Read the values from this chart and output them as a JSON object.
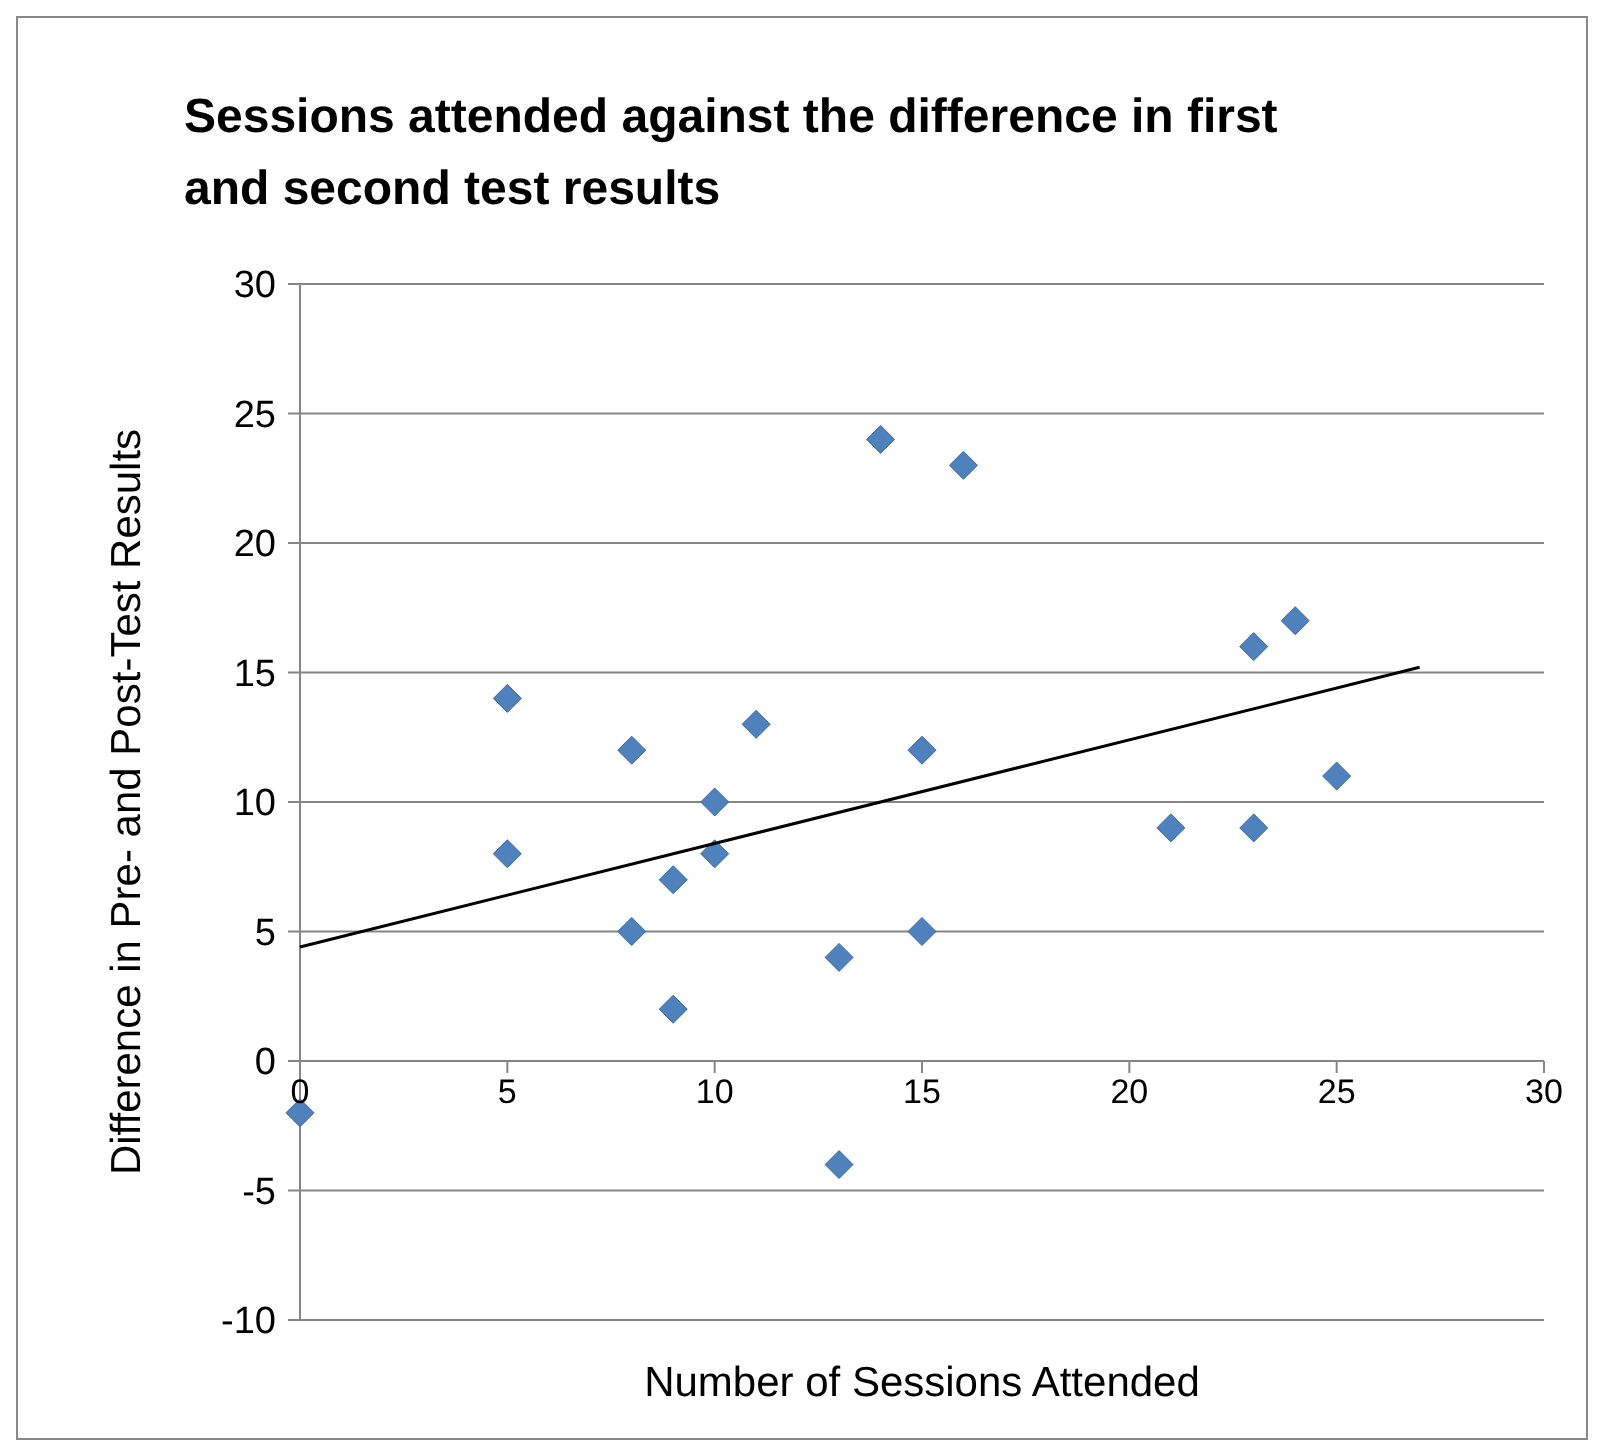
{
  "chart_data": {
    "type": "scatter",
    "title": "Sessions attended against the difference in first and second test results",
    "xlabel": "Number of Sessions Attended",
    "ylabel": "Difference in Pre- and Post-Test Results",
    "xlim": [
      0,
      30
    ],
    "xticks": [
      0,
      5,
      10,
      15,
      20,
      25,
      30
    ],
    "ylim": [
      -10,
      30
    ],
    "yticks": [
      -10,
      -5,
      0,
      5,
      10,
      15,
      20,
      25,
      30
    ],
    "grid": "y",
    "series": [
      {
        "marker": "diamond",
        "color": "#4f81bd",
        "x": [
          0,
          5,
          5,
          8,
          8,
          9,
          9,
          10,
          10,
          11,
          13,
          13,
          14,
          15,
          15,
          16,
          21,
          23,
          23,
          24,
          25
        ],
        "values": [
          -2,
          14,
          8,
          12,
          5,
          7,
          2,
          10,
          8,
          13,
          4,
          -4,
          24,
          12,
          5,
          23,
          9,
          16,
          9,
          17,
          11
        ]
      },
      {
        "type": "line",
        "marker": "none",
        "color": "#000000",
        "x": [
          0,
          27
        ],
        "values": [
          4.4,
          15.2
        ]
      }
    ]
  }
}
